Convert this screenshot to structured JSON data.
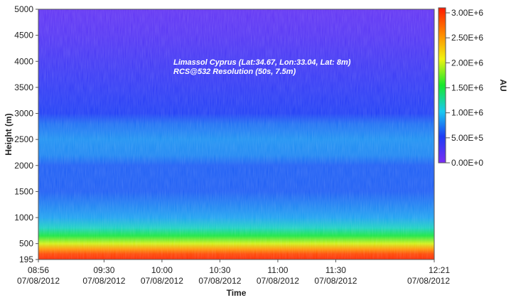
{
  "chart_data": {
    "type": "heatmap",
    "title": "",
    "xlabel": "Time",
    "ylabel": "Height (m)",
    "x_ticks": [
      {
        "time": "08:56",
        "date": "07/08/2012",
        "minutes": 0
      },
      {
        "time": "09:30",
        "date": "07/08/2012",
        "minutes": 34
      },
      {
        "time": "10:00",
        "date": "07/08/2012",
        "minutes": 64
      },
      {
        "time": "10:30",
        "date": "07/08/2012",
        "minutes": 94
      },
      {
        "time": "11:00",
        "date": "07/08/2012",
        "minutes": 124
      },
      {
        "time": "11:30",
        "date": "07/08/2012",
        "minutes": 154
      },
      {
        "time": "12:21",
        "date": "07/08/2012",
        "minutes": 205
      }
    ],
    "xlim": [
      "08:56",
      "12:21"
    ],
    "y_ticks": [
      195,
      500,
      1000,
      1500,
      2000,
      2500,
      3000,
      3500,
      4000,
      4500,
      5000
    ],
    "ylim": [
      195,
      5000
    ],
    "annotations": [
      "Limassol Cyprus (Lat:34.67, Lon:33.04, Lat: 8m)",
      "RCS@532 Resolution (50s, 7.5m)"
    ],
    "colorbar": {
      "label": "AU",
      "range": [
        0,
        3100000
      ],
      "ticks": [
        {
          "value": 3000000,
          "label": "3.00E+6"
        },
        {
          "value": 2500000,
          "label": "2.50E+6"
        },
        {
          "value": 2000000,
          "label": "2.00E+6"
        },
        {
          "value": 1500000,
          "label": "1.50E+6"
        },
        {
          "value": 1000000,
          "label": "1.00E+6"
        },
        {
          "value": 500000,
          "label": "5.00E+5"
        },
        {
          "value": 0,
          "label": "0.00E+0"
        }
      ],
      "colors": [
        {
          "stop": 0.0,
          "color": "#7b2df3"
        },
        {
          "stop": 0.17,
          "color": "#1c3cf5"
        },
        {
          "stop": 0.33,
          "color": "#19c9f0"
        },
        {
          "stop": 0.5,
          "color": "#15e82c"
        },
        {
          "stop": 0.67,
          "color": "#f1f30f"
        },
        {
          "stop": 0.83,
          "color": "#ff8a00"
        },
        {
          "stop": 1.0,
          "color": "#ff1a00"
        }
      ]
    },
    "height_profile": [
      {
        "height": 5000,
        "value": 150000
      },
      {
        "height": 4500,
        "value": 220000
      },
      {
        "height": 4000,
        "value": 330000
      },
      {
        "height": 3500,
        "value": 420000
      },
      {
        "height": 3000,
        "value": 520000
      },
      {
        "height": 2800,
        "value": 700000
      },
      {
        "height": 2500,
        "value": 820000
      },
      {
        "height": 2200,
        "value": 780000
      },
      {
        "height": 2000,
        "value": 640000
      },
      {
        "height": 1500,
        "value": 640000
      },
      {
        "height": 1000,
        "value": 880000
      },
      {
        "height": 800,
        "value": 1150000
      },
      {
        "height": 650,
        "value": 1500000
      },
      {
        "height": 500,
        "value": 2000000
      },
      {
        "height": 400,
        "value": 2500000
      },
      {
        "height": 300,
        "value": 2900000
      },
      {
        "height": 195,
        "value": 3050000
      }
    ]
  }
}
